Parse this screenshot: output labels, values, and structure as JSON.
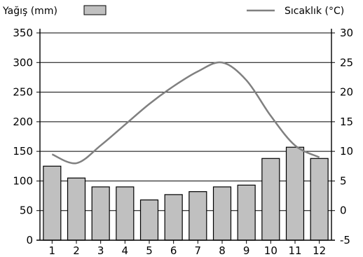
{
  "chart_data": {
    "type": "bar",
    "title": "",
    "categories": [
      "1",
      "2",
      "3",
      "4",
      "5",
      "6",
      "7",
      "8",
      "9",
      "10",
      "11",
      "12"
    ],
    "legend": {
      "bar_label": "Yağış (mm)",
      "line_label": "Sıcaklık (°C)",
      "placement": "top"
    },
    "series": [
      {
        "name": "Yağış (mm)",
        "type": "bar",
        "axis": "left",
        "values": [
          125,
          105,
          90,
          90,
          68,
          77,
          82,
          90,
          93,
          138,
          157,
          138
        ]
      },
      {
        "name": "Sıcaklık (°C)",
        "type": "line",
        "axis": "right",
        "values": [
          9.5,
          8,
          11,
          14.5,
          18,
          21,
          23.5,
          25,
          22,
          16,
          11,
          9
        ]
      }
    ],
    "y_left": {
      "min": 0,
      "max": 350,
      "ticks": [
        0,
        50,
        100,
        150,
        200,
        250,
        300,
        350
      ]
    },
    "y_right": {
      "min": -5,
      "max": 30,
      "ticks": [
        -5,
        0,
        5,
        10,
        15,
        20,
        25,
        30
      ]
    },
    "grid": true,
    "colors": {
      "bar_fill": "#c0c0c0",
      "bar_stroke": "#000000",
      "line": "#808080",
      "grid": "#000000"
    }
  }
}
